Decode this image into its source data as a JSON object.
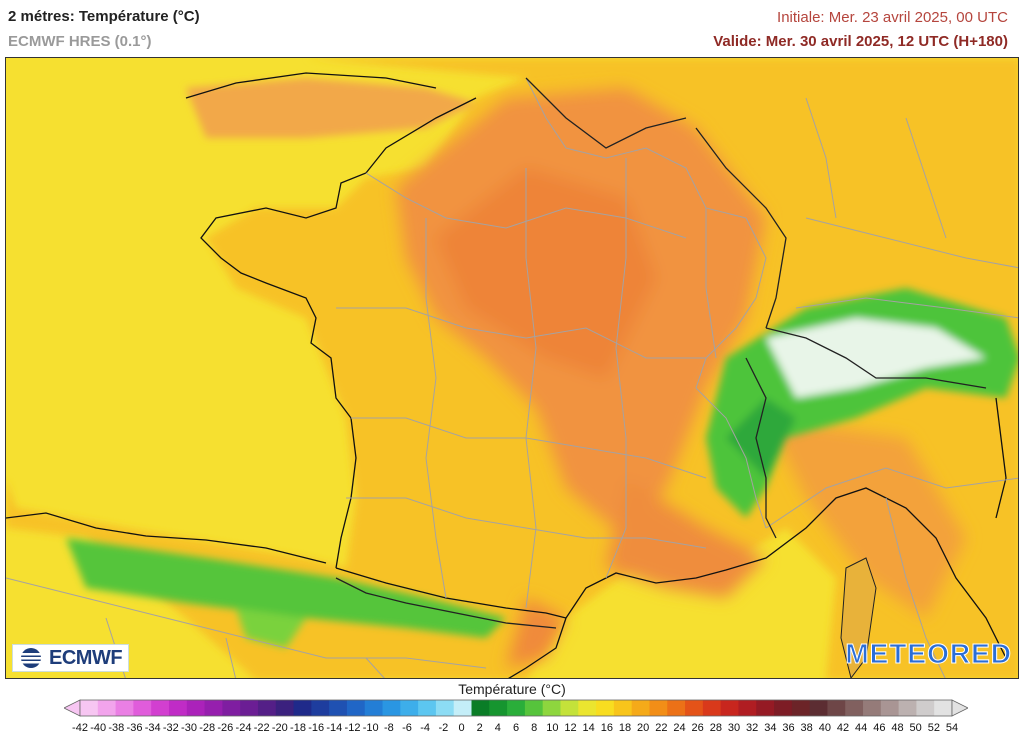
{
  "header": {
    "title": "2 métres: Température (°C)",
    "model": "ECMWF HRES (0.1°)",
    "initial": "Initiale: Mer. 23 avril 2025, 00 UTC",
    "valid": "Valide: Mer. 30 avril 2025, 12 UTC (H+180)"
  },
  "logos": {
    "ecmwf": "ECMWF",
    "meteored": "METEORED"
  },
  "legend": {
    "title": "Température (°C)",
    "ticks": [
      "-42",
      "-40",
      "-38",
      "-36",
      "-34",
      "-32",
      "-30",
      "-28",
      "-26",
      "-24",
      "-22",
      "-20",
      "-18",
      "-16",
      "-14",
      "-12",
      "-10",
      "-8",
      "-6",
      "-4",
      "-2",
      "0",
      "2",
      "4",
      "6",
      "8",
      "10",
      "12",
      "14",
      "16",
      "18",
      "20",
      "22",
      "24",
      "26",
      "28",
      "30",
      "32",
      "34",
      "36",
      "38",
      "40",
      "42",
      "44",
      "46",
      "48",
      "50",
      "52",
      "54"
    ],
    "colors": [
      "#f7c6f2",
      "#f2a4ec",
      "#ea7fe4",
      "#e05cdb",
      "#d23fd0",
      "#c02cc6",
      "#ab22ba",
      "#961fae",
      "#7f1ea1",
      "#6b1e94",
      "#541f87",
      "#3b217e",
      "#1f2a8a",
      "#1e3d9e",
      "#1f51b2",
      "#2066c6",
      "#237ed6",
      "#2a96e2",
      "#3daeea",
      "#5cc6f0",
      "#8cdcf4",
      "#c4eef8",
      "#0a7d27",
      "#16952f",
      "#2aae3a",
      "#56c43c",
      "#8ed63e",
      "#c4e23a",
      "#ebe52f",
      "#f8dd20",
      "#f8c51b",
      "#f5aa19",
      "#f28e17",
      "#ec7117",
      "#e45318",
      "#d9391b",
      "#c8261e",
      "#b01d22",
      "#951a24",
      "#7d1c25",
      "#6c2428",
      "#5c2d32",
      "#6e4647",
      "#81605f",
      "#957b79",
      "#a99594",
      "#bcb1b0",
      "#cfcccc",
      "#e2e2e2"
    ]
  }
}
